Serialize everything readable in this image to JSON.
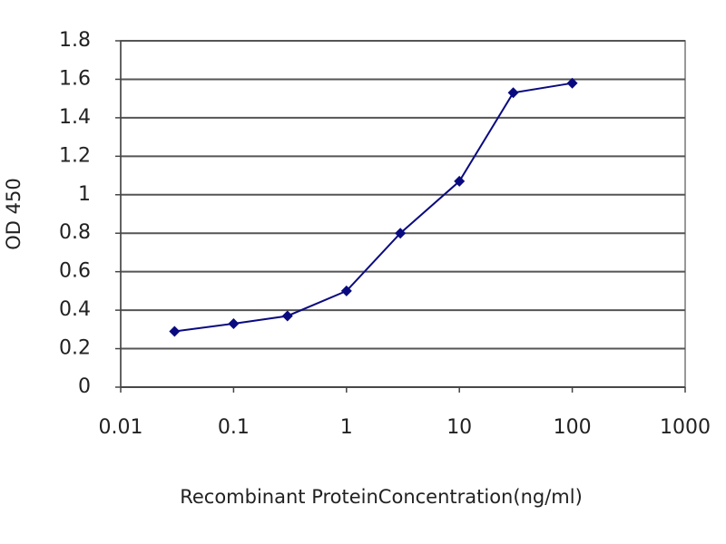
{
  "chart_data": {
    "type": "line",
    "y_label": "OD 450",
    "x_label": "Recombinant ProteinConcentration(ng/ml)",
    "x": [
      0.03,
      0.1,
      0.3,
      1,
      3,
      10,
      30,
      100
    ],
    "values": [
      0.29,
      0.33,
      0.37,
      0.5,
      0.8,
      1.07,
      1.53,
      1.58
    ],
    "color": "#0a0a80",
    "x_log": true,
    "xlim": [
      0.01,
      1000
    ],
    "xticks": [
      0.01,
      0.1,
      1,
      10,
      100,
      1000
    ],
    "ylim": [
      0,
      1.8
    ],
    "yticks": [
      0,
      0.2,
      0.4,
      0.6,
      0.8,
      1,
      1.2,
      1.4,
      1.6,
      1.8
    ],
    "grid": true
  }
}
